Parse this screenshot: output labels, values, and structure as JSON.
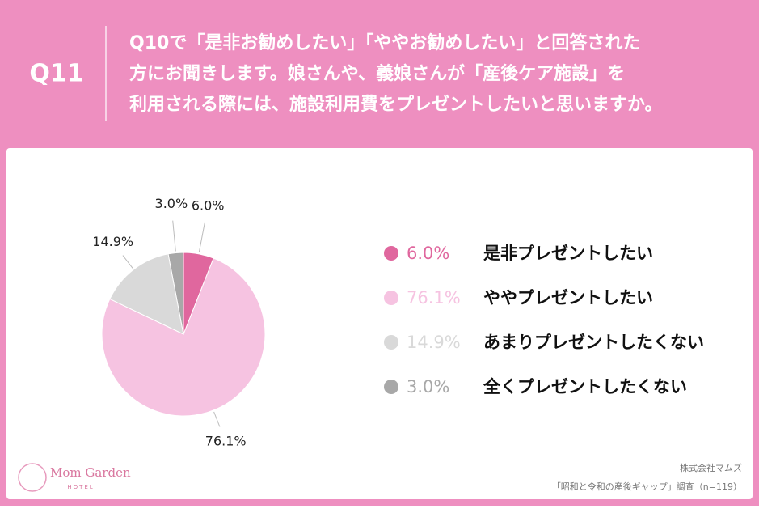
{
  "header": {
    "number": "Q11",
    "question": [
      "Q10で「是非お勧めしたい」「ややお勧めしたい」と回答された",
      "方にお聞きします。娘さんや、義娘さんが「産後ケア施設」を",
      "利用される際には、施設利用費をプレゼントしたいと思いますか。"
    ]
  },
  "chart_data": {
    "type": "pie",
    "categories": [
      "是非プレゼントしたい",
      "ややプレゼントしたい",
      "あまりプレゼントしたくない",
      "全くプレゼントしたくない"
    ],
    "values": [
      6.0,
      76.1,
      14.9,
      3.0
    ],
    "value_labels": [
      "6.0%",
      "76.1%",
      "14.9%",
      "3.0%"
    ],
    "colors": [
      "#e0679e",
      "#f6c3e1",
      "#d9d9d9",
      "#a8a8a8"
    ]
  },
  "footer": {
    "logo": "Mom Garden",
    "logo_sub": "HOTEL",
    "company": "株式会社マムズ",
    "survey": "「昭和と令和の産後ギャップ」調査（n=119）"
  }
}
